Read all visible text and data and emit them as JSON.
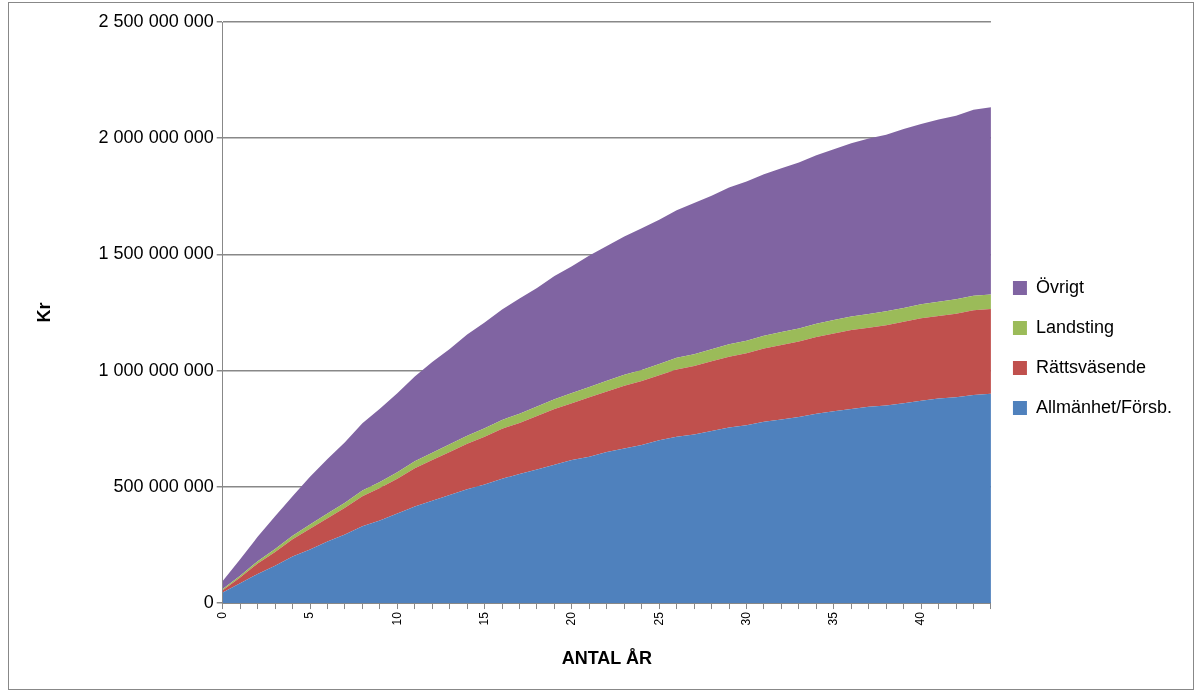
{
  "chart_data": {
    "type": "area",
    "stacked": true,
    "xlabel": "ANTAL ÅR",
    "ylabel": "Kr",
    "categories": [
      "0",
      null,
      null,
      null,
      null,
      "5",
      null,
      null,
      null,
      null,
      "10",
      null,
      null,
      null,
      null,
      "15",
      null,
      null,
      null,
      null,
      "20",
      null,
      null,
      null,
      null,
      "25",
      null,
      null,
      null,
      null,
      "30",
      null,
      null,
      null,
      null,
      "35",
      null,
      null,
      null,
      null,
      "40",
      null,
      null,
      null,
      null
    ],
    "ylim": [
      0,
      2500000000
    ],
    "yticks": [
      {
        "value": 0,
        "label": "0"
      },
      {
        "value": 500000000,
        "label": "500 000 000"
      },
      {
        "value": 1000000000,
        "label": "1 000 000 000"
      },
      {
        "value": 1500000000,
        "label": "1 500 000 000"
      },
      {
        "value": 2000000000,
        "label": "2 000 000 000"
      },
      {
        "value": 2500000000,
        "label": "2 500 000 000"
      }
    ],
    "grid": "y",
    "legend": "right",
    "series": [
      {
        "name": "Allmänhet/Försb.",
        "color": "#4f81bd",
        "values": [
          45000000,
          85000000,
          125000000,
          160000000,
          200000000,
          230000000,
          265000000,
          295000000,
          330000000,
          355000000,
          385000000,
          415000000,
          440000000,
          465000000,
          490000000,
          510000000,
          535000000,
          555000000,
          575000000,
          595000000,
          615000000,
          630000000,
          650000000,
          665000000,
          680000000,
          700000000,
          715000000,
          725000000,
          740000000,
          755000000,
          765000000,
          780000000,
          790000000,
          800000000,
          815000000,
          825000000,
          835000000,
          845000000,
          850000000,
          860000000,
          870000000,
          880000000,
          885000000,
          895000000,
          900000000
        ]
      },
      {
        "name": "Rättsväsende",
        "color": "#c0504d",
        "values": [
          10000000,
          25000000,
          45000000,
          60000000,
          75000000,
          90000000,
          100000000,
          115000000,
          130000000,
          140000000,
          150000000,
          165000000,
          175000000,
          185000000,
          195000000,
          205000000,
          215000000,
          220000000,
          230000000,
          240000000,
          245000000,
          255000000,
          260000000,
          270000000,
          275000000,
          280000000,
          290000000,
          295000000,
          300000000,
          305000000,
          310000000,
          315000000,
          320000000,
          325000000,
          330000000,
          335000000,
          340000000,
          340000000,
          345000000,
          350000000,
          355000000,
          355000000,
          360000000,
          365000000,
          365000000
        ]
      },
      {
        "name": "Landsting",
        "color": "#9bbb59",
        "values": [
          5000000,
          8000000,
          10000000,
          13000000,
          15000000,
          18000000,
          20000000,
          22000000,
          24000000,
          26000000,
          28000000,
          30000000,
          32000000,
          33000000,
          35000000,
          37000000,
          38000000,
          40000000,
          41000000,
          42000000,
          44000000,
          45000000,
          46000000,
          47000000,
          48000000,
          49000000,
          50000000,
          51000000,
          52000000,
          53000000,
          54000000,
          55000000,
          56000000,
          56000000,
          57000000,
          58000000,
          58000000,
          59000000,
          60000000,
          60000000,
          61000000,
          61000000,
          62000000,
          62000000,
          63000000
        ]
      },
      {
        "name": "Övrigt",
        "color": "#8064a2",
        "values": [
          35000000,
          70000000,
          105000000,
          140000000,
          170000000,
          205000000,
          235000000,
          260000000,
          290000000,
          315000000,
          340000000,
          365000000,
          390000000,
          410000000,
          435000000,
          455000000,
          475000000,
          495000000,
          510000000,
          530000000,
          545000000,
          565000000,
          580000000,
          595000000,
          610000000,
          620000000,
          635000000,
          650000000,
          660000000,
          675000000,
          685000000,
          695000000,
          705000000,
          715000000,
          725000000,
          735000000,
          745000000,
          755000000,
          760000000,
          770000000,
          775000000,
          785000000,
          790000000,
          800000000,
          805000000
        ]
      }
    ]
  }
}
